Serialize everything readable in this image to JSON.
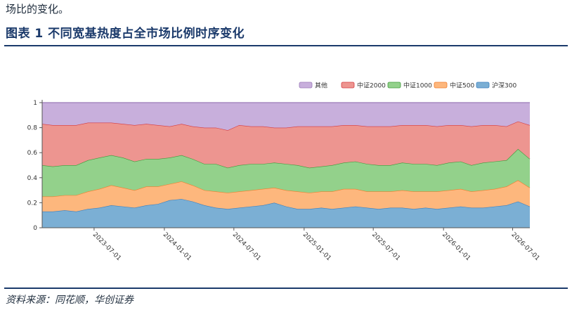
{
  "header": {
    "lead_text": "场比的变化。",
    "figure_title": "图表 1   不同宽基热度占全市场比例时序变化"
  },
  "footer": {
    "source": "资料来源：同花顺，华创证券"
  },
  "chart_data": {
    "type": "area",
    "stacked": true,
    "xlabel": "",
    "ylabel": "",
    "ylim": [
      0,
      1
    ],
    "y_ticks": [
      "0",
      "0.2",
      "0.4",
      "0.6",
      "0.8",
      "1"
    ],
    "x_ticks": [
      "2023-07-01",
      "2024-01-01",
      "2024-07-01",
      "2025-01-01",
      "2025-07-01",
      "2026-01-01",
      "2026-07-01"
    ],
    "x_range": [
      "2023-02-15",
      "2026-08-15"
    ],
    "legend_position": "top-right",
    "legend_order": [
      "其他",
      "中证2000",
      "中证1000",
      "中证500",
      "沪深300"
    ],
    "x": [
      "2023-02-15",
      "2023-03-15",
      "2023-04-15",
      "2023-05-15",
      "2023-06-15",
      "2023-07-15",
      "2023-08-15",
      "2023-09-15",
      "2023-10-15",
      "2023-11-15",
      "2023-12-15",
      "2024-01-15",
      "2024-02-15",
      "2024-03-15",
      "2024-04-15",
      "2024-05-15",
      "2024-06-15",
      "2024-07-15",
      "2024-08-15",
      "2024-09-15",
      "2024-10-15",
      "2024-11-15",
      "2024-12-15",
      "2025-01-15",
      "2025-02-15",
      "2025-03-15",
      "2025-04-15",
      "2025-05-15",
      "2025-06-15",
      "2025-07-15",
      "2025-08-15",
      "2025-09-15",
      "2025-10-15",
      "2025-11-15",
      "2025-12-15",
      "2026-01-15",
      "2026-02-15",
      "2026-03-15",
      "2026-04-15",
      "2026-05-15",
      "2026-06-15",
      "2026-07-15",
      "2026-08-15"
    ],
    "series": [
      {
        "name": "沪深300",
        "color": "#7bafd4",
        "line": "#3a7fbf",
        "values": [
          0.13,
          0.13,
          0.14,
          0.13,
          0.15,
          0.16,
          0.18,
          0.17,
          0.16,
          0.18,
          0.19,
          0.22,
          0.23,
          0.21,
          0.18,
          0.16,
          0.15,
          0.16,
          0.17,
          0.18,
          0.2,
          0.17,
          0.15,
          0.15,
          0.16,
          0.15,
          0.16,
          0.17,
          0.16,
          0.15,
          0.16,
          0.16,
          0.15,
          0.16,
          0.15,
          0.16,
          0.17,
          0.16,
          0.16,
          0.17,
          0.18,
          0.21,
          0.17
        ]
      },
      {
        "name": "中证500",
        "color": "#fdb77d",
        "line": "#f07c2c",
        "values": [
          0.12,
          0.12,
          0.12,
          0.13,
          0.14,
          0.15,
          0.16,
          0.15,
          0.14,
          0.15,
          0.14,
          0.13,
          0.14,
          0.13,
          0.12,
          0.13,
          0.13,
          0.13,
          0.13,
          0.13,
          0.12,
          0.13,
          0.14,
          0.13,
          0.13,
          0.14,
          0.15,
          0.14,
          0.13,
          0.14,
          0.13,
          0.14,
          0.14,
          0.13,
          0.14,
          0.14,
          0.14,
          0.13,
          0.14,
          0.14,
          0.15,
          0.17,
          0.15
        ]
      },
      {
        "name": "中证1000",
        "color": "#93d18b",
        "line": "#3e9a3a",
        "values": [
          0.25,
          0.24,
          0.24,
          0.24,
          0.25,
          0.25,
          0.24,
          0.24,
          0.23,
          0.22,
          0.22,
          0.21,
          0.21,
          0.21,
          0.21,
          0.22,
          0.2,
          0.21,
          0.21,
          0.2,
          0.2,
          0.21,
          0.21,
          0.2,
          0.2,
          0.21,
          0.21,
          0.22,
          0.22,
          0.21,
          0.21,
          0.22,
          0.22,
          0.22,
          0.21,
          0.22,
          0.22,
          0.21,
          0.22,
          0.22,
          0.21,
          0.25,
          0.23
        ]
      },
      {
        "name": "中证2000",
        "color": "#ed9590",
        "line": "#d43a3f",
        "values": [
          0.33,
          0.33,
          0.32,
          0.32,
          0.3,
          0.28,
          0.26,
          0.27,
          0.29,
          0.28,
          0.27,
          0.25,
          0.25,
          0.26,
          0.29,
          0.29,
          0.3,
          0.32,
          0.3,
          0.3,
          0.28,
          0.29,
          0.31,
          0.33,
          0.32,
          0.31,
          0.3,
          0.29,
          0.3,
          0.31,
          0.31,
          0.3,
          0.31,
          0.31,
          0.31,
          0.3,
          0.29,
          0.31,
          0.3,
          0.29,
          0.27,
          0.22,
          0.27
        ]
      },
      {
        "name": "其他",
        "color": "#c8afdc",
        "line": "#9a7ab8",
        "values": [
          0.17,
          0.18,
          0.18,
          0.18,
          0.16,
          0.16,
          0.16,
          0.17,
          0.18,
          0.17,
          0.18,
          0.19,
          0.17,
          0.19,
          0.2,
          0.2,
          0.22,
          0.18,
          0.19,
          0.19,
          0.2,
          0.2,
          0.19,
          0.19,
          0.19,
          0.19,
          0.18,
          0.18,
          0.19,
          0.19,
          0.19,
          0.18,
          0.18,
          0.18,
          0.19,
          0.18,
          0.18,
          0.19,
          0.18,
          0.18,
          0.19,
          0.15,
          0.18
        ]
      }
    ]
  }
}
